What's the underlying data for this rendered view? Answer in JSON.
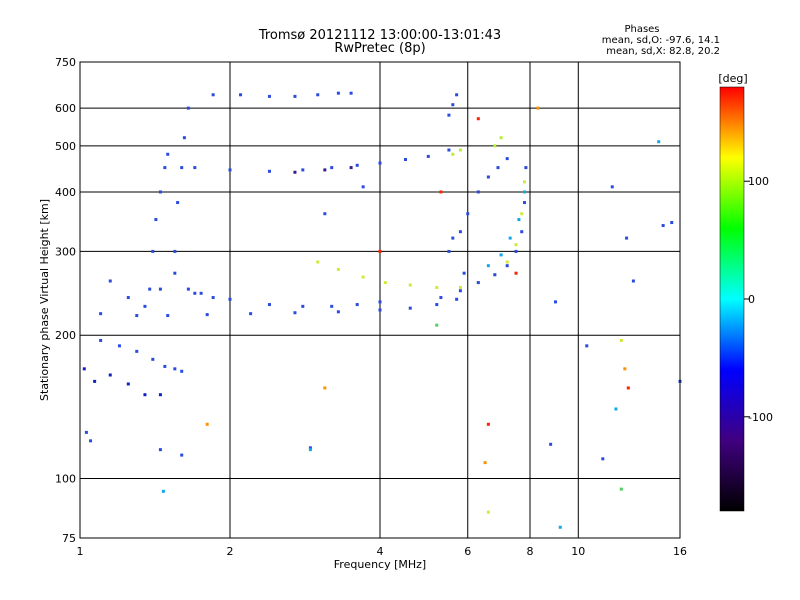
{
  "chart_data": {
    "type": "scatter",
    "title": "Tromsø 20121112 13:00:00-13:01:43",
    "subtitle": "RwPretec (8p)",
    "xlabel": "Frequency [MHz]",
    "ylabel": "Stationary phase Virtual Height [km]",
    "x_scale": "log",
    "y_scale": "log",
    "xlim": [
      1,
      16
    ],
    "ylim": [
      75,
      750
    ],
    "x_ticks": [
      1,
      2,
      4,
      6,
      8,
      10,
      16
    ],
    "y_ticks": [
      75,
      100,
      200,
      300,
      400,
      500,
      600,
      750
    ],
    "grid": true,
    "stats": {
      "header": "Phases",
      "line_o": "mean, sd,O:  -97.6, 14.1",
      "line_x": "mean, sd,X:   82.8, 20.2"
    },
    "colorbar": {
      "label": "[deg]",
      "range": [
        -180,
        180
      ],
      "ticks": [
        100,
        0,
        -100
      ],
      "colors": [
        "#ff0000",
        "#ffff00",
        "#00ff00",
        "#00ffff",
        "#0000ff",
        "#400080",
        "#000000"
      ]
    },
    "trace_colors": {
      "blue": "#2a4ae0",
      "darkblue": "#1020c0",
      "indigo": "#3a1a90",
      "yellow": "#d4e83a",
      "lime": "#b8ee30",
      "green": "#50d060",
      "cyan": "#10a8e8",
      "red": "#ff2000",
      "orange": "#ff9000"
    },
    "series": [
      {
        "color": "darkblue",
        "x": [
          1.02,
          1.07,
          1.15,
          1.25,
          1.35,
          1.45
        ],
        "y": [
          170,
          160,
          165,
          158,
          150,
          150
        ]
      },
      {
        "color": "blue",
        "x": [
          1.1,
          1.2,
          1.3,
          1.4,
          1.48,
          1.55,
          1.6
        ],
        "y": [
          195,
          190,
          185,
          178,
          172,
          170,
          168
        ]
      },
      {
        "color": "blue",
        "x": [
          1.15,
          1.25,
          1.35,
          1.45,
          1.55,
          1.65,
          1.75,
          1.85
        ],
        "y": [
          260,
          240,
          230,
          250,
          270,
          250,
          245,
          240
        ]
      },
      {
        "color": "blue",
        "x": [
          1.38,
          1.4,
          1.42,
          1.45,
          1.48,
          1.5
        ],
        "y": [
          250,
          300,
          350,
          400,
          450,
          480
        ]
      },
      {
        "color": "blue",
        "x": [
          1.55,
          1.57,
          1.6,
          1.62,
          1.65
        ],
        "y": [
          300,
          380,
          450,
          520,
          600
        ]
      },
      {
        "color": "blue",
        "x": [
          1.1,
          1.3,
          1.5,
          1.8,
          2.2,
          2.7,
          3.3,
          4.0,
          4.6,
          5.2,
          5.7
        ],
        "y": [
          222,
          220,
          220,
          221,
          222,
          223,
          224,
          226,
          228,
          232,
          238
        ]
      },
      {
        "color": "blue",
        "x": [
          1.7,
          2.0,
          2.4,
          2.8,
          3.2,
          3.6,
          4.0
        ],
        "y": [
          245,
          238,
          232,
          230,
          230,
          232,
          235
        ]
      },
      {
        "color": "blue",
        "x": [
          1.7,
          2.0,
          2.4,
          2.8,
          3.2,
          3.6,
          4.0,
          4.5,
          5.0,
          5.5
        ],
        "y": [
          450,
          445,
          442,
          445,
          450,
          455,
          460,
          468,
          475,
          490
        ]
      },
      {
        "color": "indigo",
        "x": [
          2.7,
          3.1,
          3.5
        ],
        "y": [
          440,
          445,
          450
        ]
      },
      {
        "color": "blue",
        "x": [
          1.85,
          2.1,
          2.4,
          2.7,
          3.0,
          3.3,
          3.5
        ],
        "y": [
          640,
          640,
          635,
          635,
          640,
          645,
          645
        ]
      },
      {
        "color": "blue",
        "x": [
          5.5,
          5.6,
          5.7
        ],
        "y": [
          580,
          610,
          640
        ]
      },
      {
        "color": "yellow",
        "x": [
          3.0,
          3.3,
          3.7,
          4.1,
          4.6,
          5.2,
          5.8,
          6.3,
          6.8,
          7.2,
          7.5,
          7.7,
          7.8
        ],
        "y": [
          285,
          275,
          265,
          258,
          255,
          252,
          252,
          258,
          268,
          285,
          310,
          360,
          420
        ]
      },
      {
        "color": "blue",
        "x": [
          5.3,
          5.8,
          6.3,
          6.8,
          7.2,
          7.5,
          7.7,
          7.8,
          7.85
        ],
        "y": [
          240,
          248,
          258,
          268,
          280,
          300,
          330,
          380,
          450
        ]
      },
      {
        "color": "cyan",
        "x": [
          6.6,
          7.0,
          7.3,
          7.6,
          7.8
        ],
        "y": [
          280,
          295,
          320,
          350,
          400
        ]
      },
      {
        "color": "blue",
        "x": [
          5.5,
          5.8,
          6.0,
          6.3,
          6.6,
          6.9,
          7.2
        ],
        "y": [
          300,
          330,
          360,
          400,
          430,
          450,
          470
        ]
      },
      {
        "color": "lime",
        "x": [
          5.6,
          5.8,
          6.8,
          7.0
        ],
        "y": [
          480,
          490,
          500,
          520
        ]
      },
      {
        "color": "blue",
        "x": [
          1.03,
          1.05,
          1.45,
          1.6,
          2.9,
          3.1,
          3.7,
          5.6,
          5.9,
          8.8,
          9.0,
          10.4,
          11.7,
          12.5,
          12.9,
          14.8,
          15.4,
          16.0,
          11.2
        ],
        "y": [
          125,
          120,
          115,
          112,
          116,
          360,
          410,
          320,
          270,
          118,
          235,
          190,
          410,
          320,
          260,
          340,
          345,
          160,
          110
        ]
      },
      {
        "color": "cyan",
        "x": [
          1.47,
          2.9,
          9.2,
          11.9,
          14.5
        ],
        "y": [
          94,
          115,
          79,
          140,
          510
        ]
      },
      {
        "color": "green",
        "x": [
          12.2,
          5.2
        ],
        "y": [
          95,
          210
        ]
      },
      {
        "color": "red",
        "x": [
          6.3,
          6.6,
          7.5,
          5.3,
          12.6,
          4.0
        ],
        "y": [
          570,
          130,
          270,
          400,
          155,
          300
        ]
      },
      {
        "color": "orange",
        "x": [
          1.8,
          6.5,
          3.1,
          8.3,
          12.4
        ],
        "y": [
          130,
          108,
          155,
          600,
          170
        ]
      },
      {
        "color": "yellow",
        "x": [
          12.2,
          6.6
        ],
        "y": [
          195,
          85
        ]
      }
    ]
  }
}
